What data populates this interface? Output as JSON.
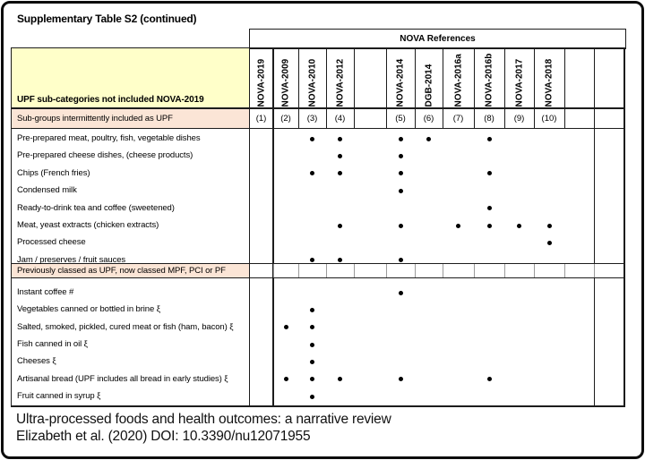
{
  "title": "Supplementary Table S2 (continued)",
  "table": {
    "references_header": "NOVA References",
    "row_label_header": "UPF sub-categories not included NOVA-2019",
    "columns": [
      {
        "label": "NOVA-2019",
        "number": "(1)"
      },
      {
        "label": "NOVA-2009",
        "number": "(2)"
      },
      {
        "label": "NOVA-2010",
        "number": "(3)"
      },
      {
        "label": "NOVA-2012",
        "number": "(4)"
      },
      {
        "label": "",
        "number": ""
      },
      {
        "label": "NOVA-2014",
        "number": "(5)"
      },
      {
        "label": "DGB-2014",
        "number": "(6)"
      },
      {
        "label": "NOVA-2016a",
        "number": "(7)"
      },
      {
        "label": "NOVA-2016b",
        "number": "(8)"
      },
      {
        "label": "NOVA-2017",
        "number": "(9)"
      },
      {
        "label": "NOVA-2018",
        "number": "(10)"
      },
      {
        "label": "",
        "number": ""
      },
      {
        "label": "",
        "number": ""
      }
    ],
    "sections": [
      {
        "header": "Sub-groups  intermittently included as UPF",
        "rows": [
          {
            "label": "Pre-prepared meat, poultry, fish, vegetable dishes",
            "dots": [
              3,
              4,
              5,
              6,
              8
            ]
          },
          {
            "label": "Pre-prepared cheese dishes, (cheese products)",
            "dots": [
              4,
              5
            ]
          },
          {
            "label": "Chips (French fries)",
            "dots": [
              3,
              4,
              5,
              8
            ]
          },
          {
            "label": "Condensed milk",
            "dots": [
              5
            ]
          },
          {
            "label": "Ready-to-drink tea and coffee (sweetened)",
            "dots": [
              8
            ]
          },
          {
            "label": "Meat, yeast extracts (chicken extracts)",
            "dots": [
              4,
              5,
              7,
              8,
              9,
              10
            ]
          },
          {
            "label": "Processed cheese",
            "dots": [
              10
            ]
          },
          {
            "label": "Jam / preserves / fruit sauces",
            "dots": [
              3,
              4,
              5
            ]
          }
        ]
      },
      {
        "header": "Previously classed as UPF, now classed MPF, PCI or PF",
        "rows": [
          {
            "label": "Instant coffee #",
            "dots": [
              5
            ]
          },
          {
            "label": "Vegetables canned or bottled in brine ξ",
            "dots": [
              3
            ]
          },
          {
            "label": "Salted, smoked, pickled, cured meat or fish (ham, bacon) ξ",
            "dots": [
              2,
              3
            ]
          },
          {
            "label": "Fish canned in oil ξ",
            "dots": [
              3
            ]
          },
          {
            "label": "Cheeses ξ",
            "dots": [
              3
            ]
          },
          {
            "label": "Artisanal bread (UPF includes all bread in early studies) ξ",
            "dots": [
              2,
              3,
              4,
              5,
              8
            ]
          },
          {
            "label": "Fruit canned in syrup ξ",
            "dots": [
              3
            ]
          }
        ]
      }
    ]
  },
  "footer": {
    "line1": "Ultra-processed foods and health outcomes: a narrative review",
    "line2": "Elizabeth et al. (2020) DOI: 10.3390/nu12071955"
  },
  "colors": {
    "header_yellow": "#ffffc9",
    "section_pink": "#fbe5d6",
    "border_ink": "#1c1c1c",
    "dot_black": "#000000"
  }
}
